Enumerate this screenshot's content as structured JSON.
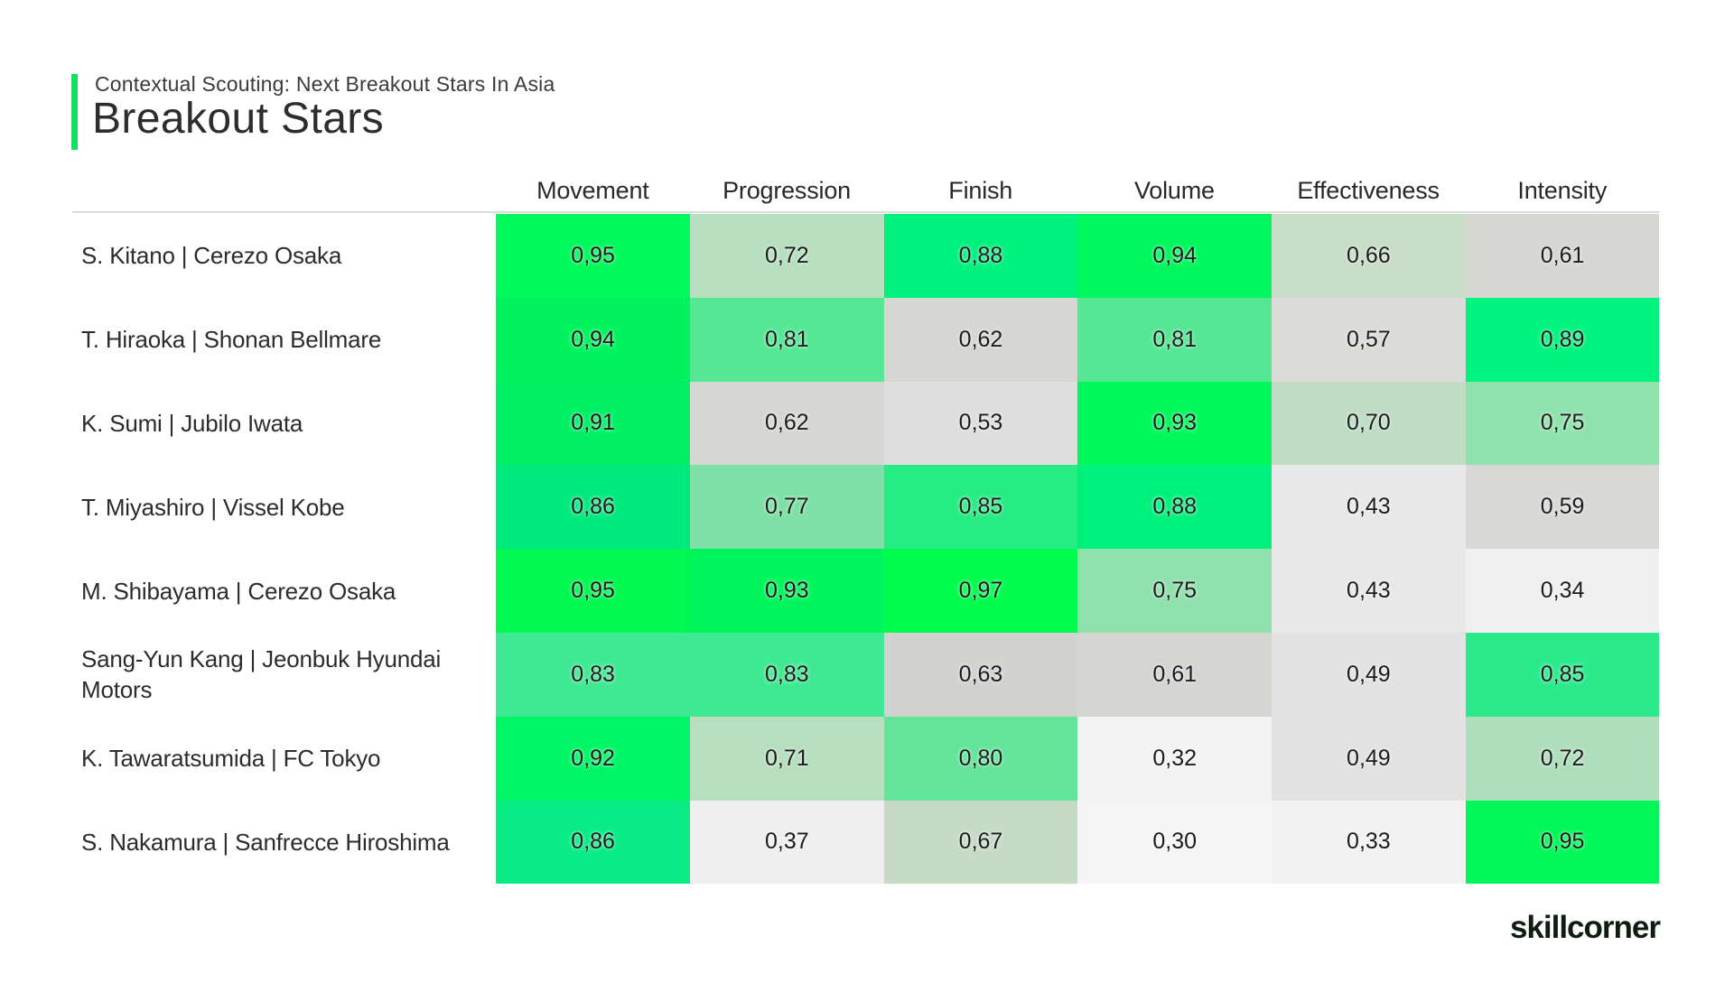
{
  "page": {
    "subtitle": "Contextual Scouting: Next Breakout Stars In Asia",
    "title": "Breakout Stars",
    "accent_color": "#00E95C",
    "logo_text": "skillcorner"
  },
  "table": {
    "columns": [
      "Movement",
      "Progression",
      "Finish",
      "Volume",
      "Effectiveness",
      "Intensity"
    ],
    "rows": [
      {
        "player": "S. Kitano | Cerezo Osaka",
        "values": [
          "0,95",
          "0,72",
          "0,88",
          "0,94",
          "0,66",
          "0,61"
        ],
        "colors": [
          "#00F95C",
          "#B5DFBF",
          "#00F07E",
          "#00F65D",
          "#C8DCC8",
          "#D6D6D3"
        ]
      },
      {
        "player": "T. Hiraoka | Shonan Bellmare",
        "values": [
          "0,94",
          "0,81",
          "0,62",
          "0,81",
          "0,57",
          "0,89"
        ],
        "colors": [
          "#00F35E",
          "#55E794",
          "#D6D6D2",
          "#55E794",
          "#DBDBDA",
          "#00F47D"
        ]
      },
      {
        "player": "K. Sumi | Jubilo Iwata",
        "values": [
          "0,91",
          "0,62",
          "0,53",
          "0,93",
          "0,70",
          "0,75"
        ],
        "colors": [
          "#00EF65",
          "#D6D6D2",
          "#DEDEDE",
          "#00F85C",
          "#BEDDC4",
          "#90E2AD"
        ]
      },
      {
        "player": "T. Miyashiro | Vissel Kobe",
        "values": [
          "0,86",
          "0,77",
          "0,85",
          "0,88",
          "0,43",
          "0,59"
        ],
        "colors": [
          "#00E97E",
          "#7EE0A4",
          "#27EC83",
          "#00F17B",
          "#E8E8E8",
          "#D8D8D6"
        ]
      },
      {
        "player": "M. Shibayama | Cerezo Osaka",
        "values": [
          "0,95",
          "0,93",
          "0,97",
          "0,75",
          "0,43",
          "0,34"
        ],
        "colors": [
          "#00F851",
          "#00F55D",
          "#00FD4E",
          "#90E0AD",
          "#E8E8E8",
          "#F0F0F0"
        ]
      },
      {
        "player": "Sang-Yun Kang | Jeonbuk Hyundai Motors",
        "values": [
          "0,83",
          "0,83",
          "0,63",
          "0,61",
          "0,49",
          "0,85"
        ],
        "colors": [
          "#3FE892",
          "#3FE892",
          "#D2D2D0",
          "#D4D4D2",
          "#E2E2E2",
          "#2AEA8B"
        ]
      },
      {
        "player": "K. Tawaratsumida | FC Tokyo",
        "values": [
          "0,92",
          "0,71",
          "0,80",
          "0,32",
          "0,49",
          "0,72"
        ],
        "colors": [
          "#00F566",
          "#B6DEBF",
          "#64E49A",
          "#F3F3F3",
          "#E2E2E2",
          "#AFDEBC"
        ]
      },
      {
        "player": "S. Nakamura | Sanfrecce Hiroshima",
        "values": [
          "0,86",
          "0,37",
          "0,67",
          "0,30",
          "0,33",
          "0,95"
        ],
        "colors": [
          "#09EB84",
          "#EFEFEF",
          "#C6DAC6",
          "#F5F5F5",
          "#F2F2F2",
          "#00F757"
        ]
      }
    ]
  },
  "chart_data": {
    "type": "heatmap",
    "title": "Breakout Stars",
    "subtitle": "Contextual Scouting: Next Breakout Stars In Asia",
    "columns": [
      "Movement",
      "Progression",
      "Finish",
      "Volume",
      "Effectiveness",
      "Intensity"
    ],
    "rows": [
      "S. Kitano | Cerezo Osaka",
      "T. Hiraoka | Shonan Bellmare",
      "K. Sumi | Jubilo Iwata",
      "T. Miyashiro | Vissel Kobe",
      "M. Shibayama | Cerezo Osaka",
      "Sang-Yun Kang | Jeonbuk Hyundai Motors",
      "K. Tawaratsumida | FC Tokyo",
      "S. Nakamura | Sanfrecce Hiroshima"
    ],
    "values": [
      [
        0.95,
        0.72,
        0.88,
        0.94,
        0.66,
        0.61
      ],
      [
        0.94,
        0.81,
        0.62,
        0.81,
        0.57,
        0.89
      ],
      [
        0.91,
        0.62,
        0.53,
        0.93,
        0.7,
        0.75
      ],
      [
        0.86,
        0.77,
        0.85,
        0.88,
        0.43,
        0.59
      ],
      [
        0.95,
        0.93,
        0.97,
        0.75,
        0.43,
        0.34
      ],
      [
        0.83,
        0.83,
        0.63,
        0.61,
        0.49,
        0.85
      ],
      [
        0.92,
        0.71,
        0.8,
        0.32,
        0.49,
        0.72
      ],
      [
        0.86,
        0.37,
        0.67,
        0.3,
        0.33,
        0.95
      ]
    ],
    "value_range": [
      0,
      1
    ],
    "decimal_separator": ",",
    "colormap": "low values near-white gray, mid values gray, high values vivid green",
    "legend": "none",
    "grid": false
  }
}
